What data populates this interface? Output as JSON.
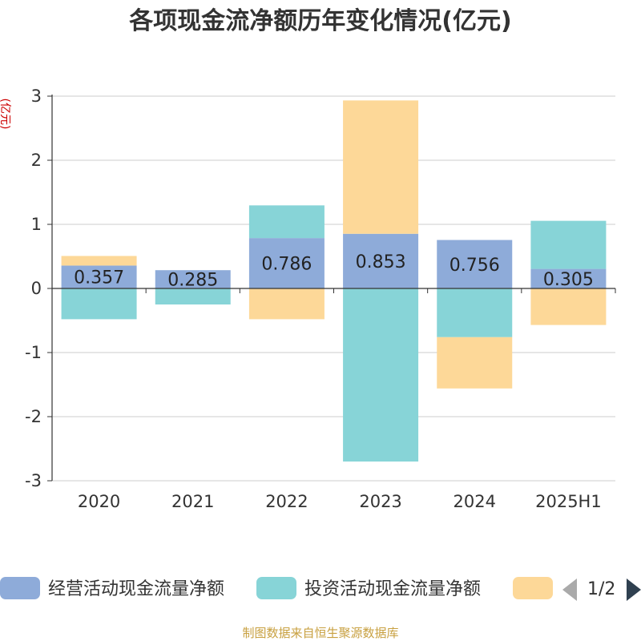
{
  "chart_data": {
    "type": "bar",
    "stacked": true,
    "title": "各项现金流净额历年变化情况(亿元)",
    "ylabel": "(亿元)",
    "ylim": [
      -3,
      3
    ],
    "yticks": [
      -3,
      -2,
      -1,
      0,
      1,
      2,
      3
    ],
    "grid": true,
    "legend_placement": "bottom",
    "categories": [
      "2020",
      "2021",
      "2022",
      "2023",
      "2024",
      "2025H1"
    ],
    "series": [
      {
        "name": "经营活动现金流量净额",
        "color": "#8eabd9",
        "values": [
          0.357,
          0.285,
          0.786,
          0.853,
          0.756,
          0.305
        ],
        "labels": [
          "0.357",
          "0.285",
          "0.786",
          "0.853",
          "0.756",
          "0.305"
        ]
      },
      {
        "name": "投资活动现金流量净额",
        "color": "#87d4d7",
        "values": [
          -0.48,
          -0.25,
          0.51,
          -2.7,
          -0.76,
          0.75
        ]
      },
      {
        "name": "",
        "color": "#fdd898",
        "values": [
          0.15,
          0.0,
          -0.48,
          2.08,
          -0.8,
          -0.57
        ]
      }
    ]
  },
  "legend": {
    "page_indicator": "1/2"
  },
  "footer": {
    "source": "制图数据来自恒生聚源数据库"
  }
}
